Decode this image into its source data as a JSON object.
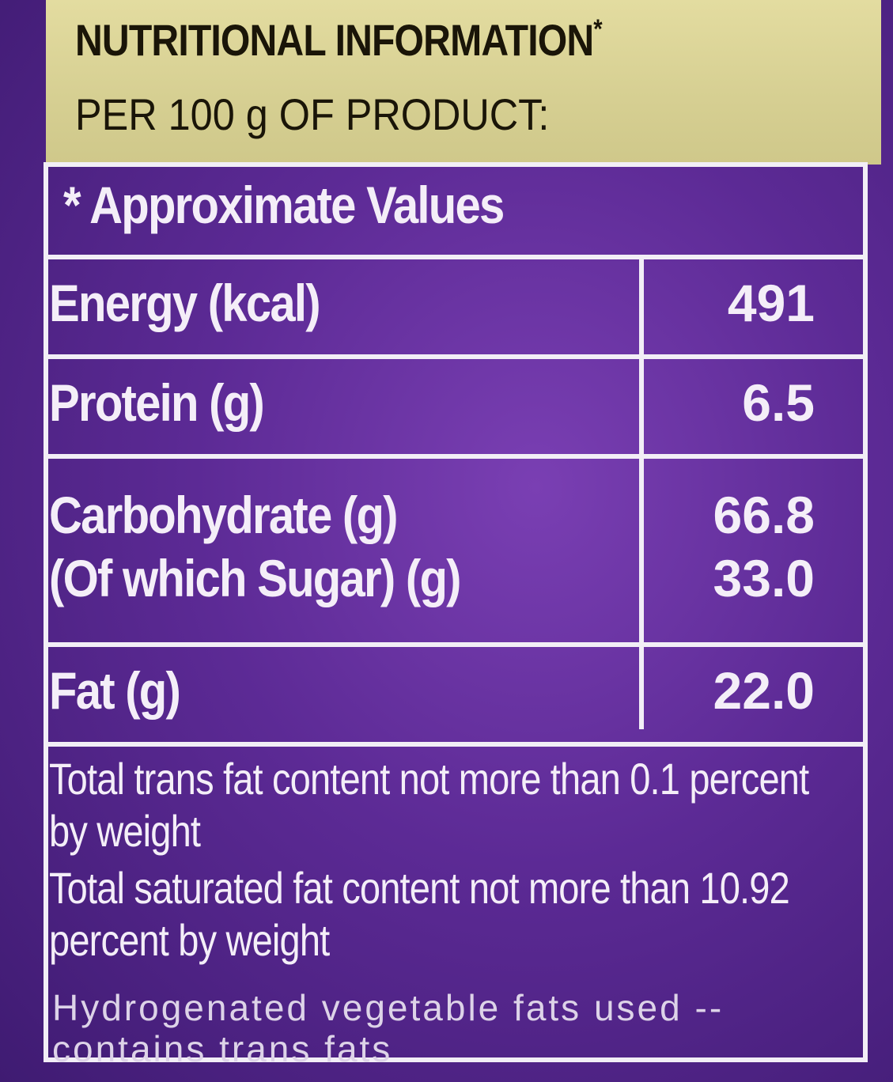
{
  "header": {
    "title": "NUTRITIONAL INFORMATION",
    "title_mark": "*",
    "subtitle": "PER 100 g OF PRODUCT:"
  },
  "table": {
    "caption": "* Approximate Values",
    "rows": [
      {
        "label": [
          "Energy (kcal)"
        ],
        "value": [
          "491"
        ]
      },
      {
        "label": [
          "Protein (g)"
        ],
        "value": [
          "6.5"
        ]
      },
      {
        "label": [
          "Carbohydrate (g)",
          "(Of which Sugar) (g)"
        ],
        "value": [
          "66.8",
          "33.0"
        ]
      },
      {
        "label": [
          "Fat (g)"
        ],
        "value": [
          "22.0"
        ]
      }
    ]
  },
  "notes": [
    "Total trans fat content not more than 0.1 percent by weight",
    "Total saturated fat content not more than 10.92 percent by weight"
  ],
  "warning": "Hydrogenated vegetable fats used -- contains trans fats"
}
